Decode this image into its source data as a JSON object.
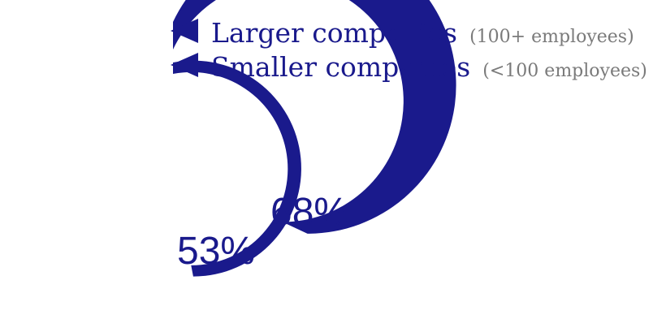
{
  "chart_data": {
    "type": "radial-bar",
    "series": [
      {
        "name": "Larger companies",
        "qualifier": "(100+ employees)",
        "value": 68,
        "value_label": "68%"
      },
      {
        "name": "Smaller companies",
        "qualifier": "(<100 employees)",
        "value": 53,
        "value_label": "53%"
      }
    ],
    "max": 100,
    "legend_position": "top",
    "color": "#1a1a8c"
  }
}
